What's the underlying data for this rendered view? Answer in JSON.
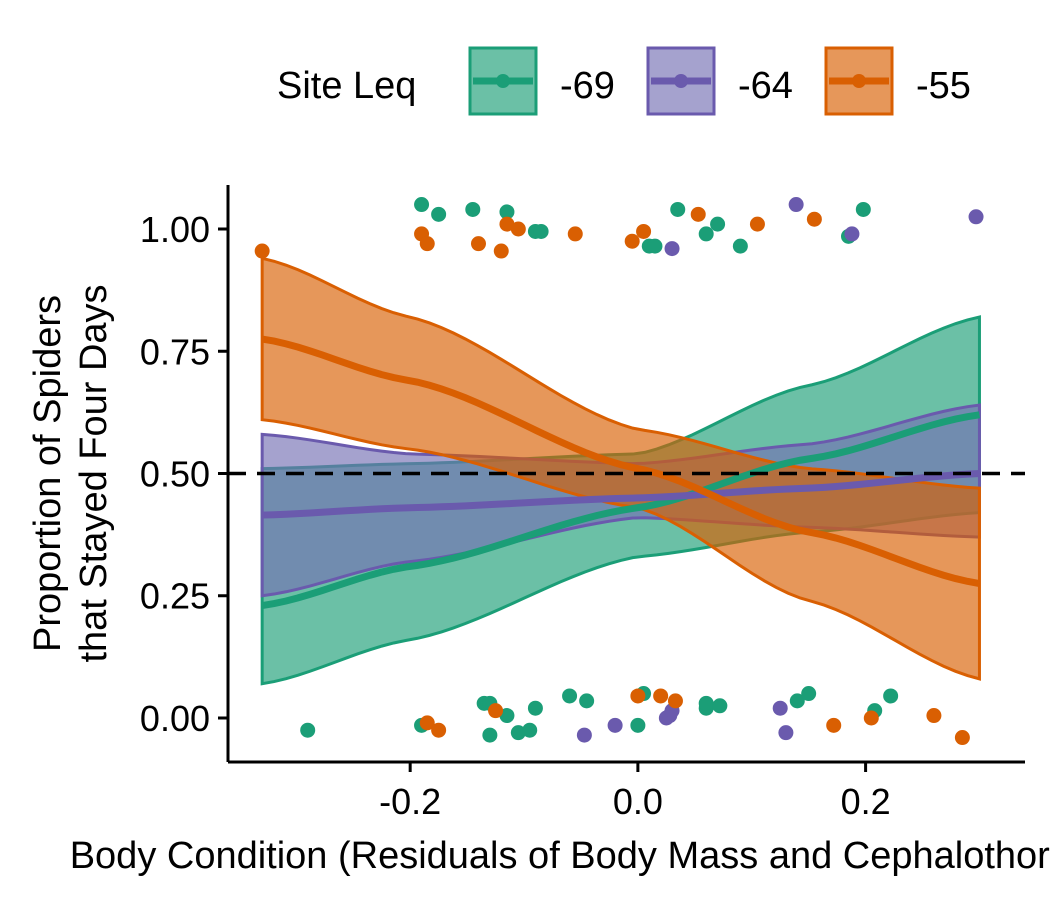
{
  "chart_data": {
    "type": "line",
    "title": "",
    "xlabel": "Body Condition (Residuals of Body Mass and Cephalothorax Width)",
    "ylabel_lines": [
      "Proportion of Spiders",
      "that Stayed Four Days"
    ],
    "xlim": [
      -0.36,
      0.34
    ],
    "ylim": [
      -0.09,
      1.09
    ],
    "x_ticks": [
      -0.2,
      0.0,
      0.2
    ],
    "x_tick_labels": [
      "-0.2",
      "0.0",
      "0.2"
    ],
    "y_ticks": [
      0.0,
      0.25,
      0.5,
      0.75,
      1.0
    ],
    "y_tick_labels": [
      "0.00",
      "0.25",
      "0.50",
      "0.75",
      "1.00"
    ],
    "reference_line": {
      "y": 0.5,
      "style": "dashed"
    },
    "legend": {
      "title": "Site Leq",
      "position": "top"
    },
    "grid": false,
    "series": [
      {
        "name": "-69",
        "color": "#1b9e77",
        "fill": "#1b9e77",
        "x": [
          -0.33,
          0.3
        ],
        "fit": {
          "x": [
            -0.33,
            -0.2,
            0.0,
            0.15,
            0.3
          ],
          "y": [
            0.23,
            0.31,
            0.43,
            0.53,
            0.62
          ]
        },
        "ci_lower": {
          "x": [
            -0.33,
            -0.2,
            0.0,
            0.15,
            0.3
          ],
          "y": [
            0.07,
            0.16,
            0.33,
            0.38,
            0.42
          ]
        },
        "ci_upper": {
          "x": [
            -0.33,
            -0.2,
            0.0,
            0.15,
            0.3
          ],
          "y": [
            0.51,
            0.52,
            0.54,
            0.68,
            0.82
          ]
        },
        "points": [
          [
            -0.19,
            1.05
          ],
          [
            -0.175,
            1.03
          ],
          [
            -0.145,
            1.04
          ],
          [
            -0.115,
            1.035
          ],
          [
            -0.09,
            0.995
          ],
          [
            -0.085,
            0.995
          ],
          [
            0.01,
            0.965
          ],
          [
            0.015,
            0.965
          ],
          [
            0.035,
            1.04
          ],
          [
            0.06,
            0.99
          ],
          [
            0.07,
            1.01
          ],
          [
            0.09,
            0.965
          ],
          [
            0.185,
            0.985
          ],
          [
            0.198,
            1.04
          ],
          [
            -0.29,
            -0.025
          ],
          [
            -0.19,
            -0.015
          ],
          [
            -0.135,
            0.03
          ],
          [
            -0.13,
            0.03
          ],
          [
            -0.115,
            0.005
          ],
          [
            -0.13,
            -0.035
          ],
          [
            -0.105,
            -0.03
          ],
          [
            -0.095,
            -0.025
          ],
          [
            -0.09,
            0.02
          ],
          [
            -0.06,
            0.045
          ],
          [
            -0.045,
            0.035
          ],
          [
            0.005,
            0.05
          ],
          [
            0.0,
            -0.015
          ],
          [
            0.06,
            0.02
          ],
          [
            0.06,
            0.03
          ],
          [
            0.072,
            0.025
          ],
          [
            0.14,
            0.035
          ],
          [
            0.15,
            0.05
          ],
          [
            0.208,
            0.015
          ],
          [
            0.222,
            0.045
          ]
        ]
      },
      {
        "name": "-64",
        "color": "#6a5aad",
        "fill": "#7570b3",
        "x": [
          -0.33,
          0.3
        ],
        "fit": {
          "x": [
            -0.33,
            -0.2,
            0.0,
            0.15,
            0.3
          ],
          "y": [
            0.415,
            0.43,
            0.45,
            0.47,
            0.5
          ]
        },
        "ci_lower": {
          "x": [
            -0.33,
            -0.2,
            0.0,
            0.15,
            0.3
          ],
          "y": [
            0.25,
            0.32,
            0.41,
            0.39,
            0.37
          ]
        },
        "ci_upper": {
          "x": [
            -0.33,
            -0.2,
            0.0,
            0.15,
            0.3
          ],
          "y": [
            0.58,
            0.54,
            0.52,
            0.56,
            0.64
          ]
        },
        "points": [
          [
            0.03,
            0.96
          ],
          [
            0.139,
            1.05
          ],
          [
            0.188,
            0.99
          ],
          [
            0.297,
            1.025
          ],
          [
            -0.047,
            -0.035
          ],
          [
            -0.02,
            -0.015
          ],
          [
            0.025,
            0.0
          ],
          [
            0.028,
            0.005
          ],
          [
            0.03,
            0.015
          ],
          [
            0.125,
            0.02
          ],
          [
            0.13,
            -0.03
          ]
        ]
      },
      {
        "name": "-55",
        "color": "#d95f02",
        "fill": "#d95f02",
        "x": [
          -0.33,
          0.3
        ],
        "fit": {
          "x": [
            -0.33,
            -0.2,
            0.0,
            0.15,
            0.3
          ],
          "y": [
            0.775,
            0.69,
            0.51,
            0.38,
            0.275
          ]
        },
        "ci_lower": {
          "x": [
            -0.33,
            -0.2,
            0.0,
            0.15,
            0.3
          ],
          "y": [
            0.61,
            0.55,
            0.43,
            0.24,
            0.08
          ]
        },
        "ci_upper": {
          "x": [
            -0.33,
            -0.2,
            0.0,
            0.15,
            0.3
          ],
          "y": [
            0.94,
            0.82,
            0.59,
            0.51,
            0.47
          ]
        },
        "points": [
          [
            -0.33,
            0.955
          ],
          [
            -0.19,
            0.99
          ],
          [
            -0.185,
            0.97
          ],
          [
            -0.14,
            0.97
          ],
          [
            -0.12,
            0.955
          ],
          [
            -0.115,
            1.01
          ],
          [
            -0.105,
            1.0
          ],
          [
            -0.055,
            0.99
          ],
          [
            -0.005,
            0.975
          ],
          [
            0.005,
            0.995
          ],
          [
            0.053,
            1.03
          ],
          [
            0.105,
            1.01
          ],
          [
            0.155,
            1.02
          ],
          [
            -0.185,
            -0.01
          ],
          [
            -0.175,
            -0.025
          ],
          [
            -0.125,
            0.015
          ],
          [
            0.0,
            0.045
          ],
          [
            0.02,
            0.045
          ],
          [
            0.033,
            0.035
          ],
          [
            0.172,
            -0.015
          ],
          [
            0.205,
            0.0
          ],
          [
            0.26,
            0.005
          ],
          [
            0.285,
            -0.04
          ]
        ]
      }
    ]
  }
}
